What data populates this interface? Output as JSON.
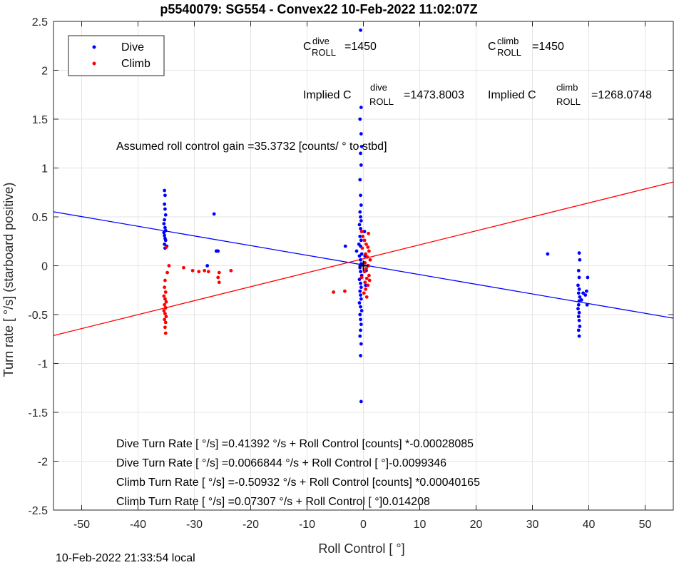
{
  "chart_data": {
    "type": "scatter",
    "title": "p5540079: SG554 - Convex22 10-Feb-2022 11:02:07Z",
    "xlabel": "Roll Control [   °]",
    "ylabel": "Turn rate [   °/s] (starboard positive)",
    "xlim": [
      -55,
      55
    ],
    "ylim": [
      -2.5,
      2.5
    ],
    "xticks": [
      "-50",
      "-40",
      "-30",
      "-20",
      "-10",
      "0",
      "10",
      "20",
      "30",
      "40",
      "50"
    ],
    "yticks": [
      "-2.5",
      "-2",
      "-1.5",
      "-1",
      "-0.5",
      "0",
      "0.5",
      "1",
      "1.5",
      "2",
      "2.5"
    ],
    "grid": true,
    "legend_position": "top-left",
    "series": [
      {
        "name": "Dive",
        "color": "#0000ff",
        "points": [
          [
            -35.3,
            0.77
          ],
          [
            -35.2,
            0.72
          ],
          [
            -35.3,
            0.63
          ],
          [
            -35.2,
            0.58
          ],
          [
            -35.1,
            0.52
          ],
          [
            -35.3,
            0.47
          ],
          [
            -35.4,
            0.43
          ],
          [
            -35.2,
            0.39
          ],
          [
            -35.1,
            0.36
          ],
          [
            -35.4,
            0.34
          ],
          [
            -35.3,
            0.31
          ],
          [
            -35.2,
            0.28
          ],
          [
            -35.1,
            0.26
          ],
          [
            -35.3,
            0.22
          ],
          [
            -34.9,
            0.2
          ],
          [
            -35.2,
            0.18
          ],
          [
            -26.5,
            0.53
          ],
          [
            -26.1,
            0.15
          ],
          [
            -25.8,
            0.15
          ],
          [
            -27.7,
            0.0
          ],
          [
            -0.5,
            2.41
          ],
          [
            -0.4,
            1.62
          ],
          [
            -0.6,
            1.5
          ],
          [
            -0.4,
            1.35
          ],
          [
            -0.3,
            1.22
          ],
          [
            -0.5,
            1.15
          ],
          [
            -0.4,
            1.03
          ],
          [
            -0.6,
            0.88
          ],
          [
            -0.5,
            0.72
          ],
          [
            -0.4,
            0.62
          ],
          [
            -0.6,
            0.55
          ],
          [
            -0.5,
            0.5
          ],
          [
            -0.4,
            0.46
          ],
          [
            -0.7,
            0.42
          ],
          [
            -0.5,
            0.38
          ],
          [
            -0.3,
            0.35
          ],
          [
            -0.6,
            0.3
          ],
          [
            -0.4,
            0.26
          ],
          [
            -0.8,
            0.22
          ],
          [
            -0.5,
            0.2
          ],
          [
            -1.2,
            0.15
          ],
          [
            -0.3,
            0.12
          ],
          [
            -0.7,
            0.1
          ],
          [
            -0.5,
            0.06
          ],
          [
            -0.4,
            0.02
          ],
          [
            -0.6,
            -0.02
          ],
          [
            -0.5,
            -0.06
          ],
          [
            -0.3,
            -0.1
          ],
          [
            -0.7,
            -0.14
          ],
          [
            -0.5,
            -0.18
          ],
          [
            -0.4,
            -0.22
          ],
          [
            -0.6,
            -0.26
          ],
          [
            -0.5,
            -0.3
          ],
          [
            -0.4,
            -0.34
          ],
          [
            -0.7,
            -0.38
          ],
          [
            -0.5,
            -0.42
          ],
          [
            -0.3,
            -0.46
          ],
          [
            -0.6,
            -0.5
          ],
          [
            -0.5,
            -0.55
          ],
          [
            -0.4,
            -0.6
          ],
          [
            -0.5,
            -0.66
          ],
          [
            -0.6,
            -0.72
          ],
          [
            -0.4,
            -0.8
          ],
          [
            -0.5,
            -0.92
          ],
          [
            -0.4,
            -1.39
          ],
          [
            0.2,
            0.35
          ],
          [
            0.3,
            0.1
          ],
          [
            0.5,
            -0.05
          ],
          [
            0.4,
            -0.2
          ],
          [
            0.8,
            0.0
          ],
          [
            -3.2,
            0.2
          ],
          [
            32.7,
            0.12
          ],
          [
            38.3,
            0.13
          ],
          [
            38.4,
            0.06
          ],
          [
            38.2,
            -0.05
          ],
          [
            38.3,
            -0.12
          ],
          [
            38.1,
            -0.2
          ],
          [
            38.3,
            -0.24
          ],
          [
            38.2,
            -0.28
          ],
          [
            38.4,
            -0.32
          ],
          [
            38.3,
            -0.36
          ],
          [
            38.2,
            -0.4
          ],
          [
            38.1,
            -0.44
          ],
          [
            38.3,
            -0.48
          ],
          [
            38.2,
            -0.52
          ],
          [
            38.3,
            -0.56
          ],
          [
            38.4,
            -0.62
          ],
          [
            38.2,
            -0.66
          ],
          [
            38.3,
            -0.72
          ],
          [
            39.0,
            -0.28
          ],
          [
            39.4,
            -0.3
          ],
          [
            39.6,
            -0.26
          ],
          [
            39.8,
            -0.12
          ],
          [
            39.7,
            -0.4
          ],
          [
            38.7,
            -0.35
          ]
        ]
      },
      {
        "name": "Climb",
        "color": "#ff0000",
        "points": [
          [
            -35.0,
            0.19
          ],
          [
            -34.5,
            0.0
          ],
          [
            -34.8,
            -0.07
          ],
          [
            -35.2,
            -0.15
          ],
          [
            -35.3,
            -0.22
          ],
          [
            -35.1,
            -0.27
          ],
          [
            -35.4,
            -0.31
          ],
          [
            -35.2,
            -0.34
          ],
          [
            -35.0,
            -0.37
          ],
          [
            -35.3,
            -0.4
          ],
          [
            -35.1,
            -0.43
          ],
          [
            -35.4,
            -0.46
          ],
          [
            -35.2,
            -0.49
          ],
          [
            -35.0,
            -0.52
          ],
          [
            -35.3,
            -0.55
          ],
          [
            -35.1,
            -0.58
          ],
          [
            -35.2,
            -0.63
          ],
          [
            -35.1,
            -0.69
          ],
          [
            -31.9,
            -0.02
          ],
          [
            -30.3,
            -0.05
          ],
          [
            -29.2,
            -0.06
          ],
          [
            -28.2,
            -0.05
          ],
          [
            -27.5,
            -0.06
          ],
          [
            -25.6,
            -0.07
          ],
          [
            -25.8,
            -0.12
          ],
          [
            -25.6,
            -0.17
          ],
          [
            -23.5,
            -0.05
          ],
          [
            -5.3,
            -0.27
          ],
          [
            -3.3,
            -0.26
          ],
          [
            -0.3,
            0.35
          ],
          [
            -0.1,
            0.3
          ],
          [
            0.2,
            0.26
          ],
          [
            0.5,
            0.22
          ],
          [
            0.8,
            0.19
          ],
          [
            1.0,
            0.15
          ],
          [
            0.4,
            0.12
          ],
          [
            0.7,
            0.09
          ],
          [
            1.2,
            0.06
          ],
          [
            0.3,
            0.03
          ],
          [
            0.9,
            0.0
          ],
          [
            0.5,
            -0.03
          ],
          [
            0.2,
            -0.06
          ],
          [
            1.0,
            -0.1
          ],
          [
            0.6,
            -0.13
          ],
          [
            0.3,
            -0.17
          ],
          [
            0.8,
            -0.2
          ],
          [
            0.4,
            -0.24
          ],
          [
            0.1,
            -0.28
          ],
          [
            0.6,
            -0.32
          ],
          [
            0.9,
            0.33
          ],
          [
            1.1,
            -0.15
          ],
          [
            -0.2,
            0.18
          ],
          [
            -0.3,
            -0.12
          ]
        ]
      }
    ],
    "fits": [
      {
        "name": "Dive fit",
        "color": "#0000ff",
        "x": [
          -55,
          55
        ],
        "y": [
          0.5522,
          -0.5362
        ]
      },
      {
        "name": "Climb fit",
        "color": "#ff0000",
        "x": [
          -55,
          55
        ],
        "y": [
          -0.7144,
          0.8571
        ]
      }
    ],
    "center_marker": [
      0,
      0
    ],
    "annotations": {
      "c_dive": {
        "base": "C",
        "sup": "dive",
        "sub": "ROLL",
        "value": "=1450"
      },
      "c_climb": {
        "base": "C",
        "sup": "climb",
        "sub": "ROLL",
        "value": "=1450"
      },
      "implied_dive": {
        "prefix": "Implied C",
        "sup": "dive",
        "sub": "ROLL",
        "value": "=1473.8003"
      },
      "implied_climb": {
        "prefix": "Implied C",
        "sup": "climb",
        "sub": "ROLL",
        "value": "=1268.0748"
      },
      "gain": "Assumed roll control gain =35.3732 [counts/            ° to stbd]",
      "fit_lines": [
        "Dive Turn Rate [    °/s] =0.41392    °/s + Roll Control [counts] *-0.00028085",
        "Dive Turn Rate [    °/s] =0.0066844     °/s + Roll Control [     °]-0.0099346",
        "Climb Turn Rate [    °/s] =-0.50932    °/s + Roll Control [counts] *0.00040165",
        "Climb Turn Rate [    °/s] =0.07307    °/s + Roll Control [    °]0.014208"
      ]
    }
  },
  "footer": {
    "timestamp": "10-Feb-2022 21:33:54 local"
  }
}
